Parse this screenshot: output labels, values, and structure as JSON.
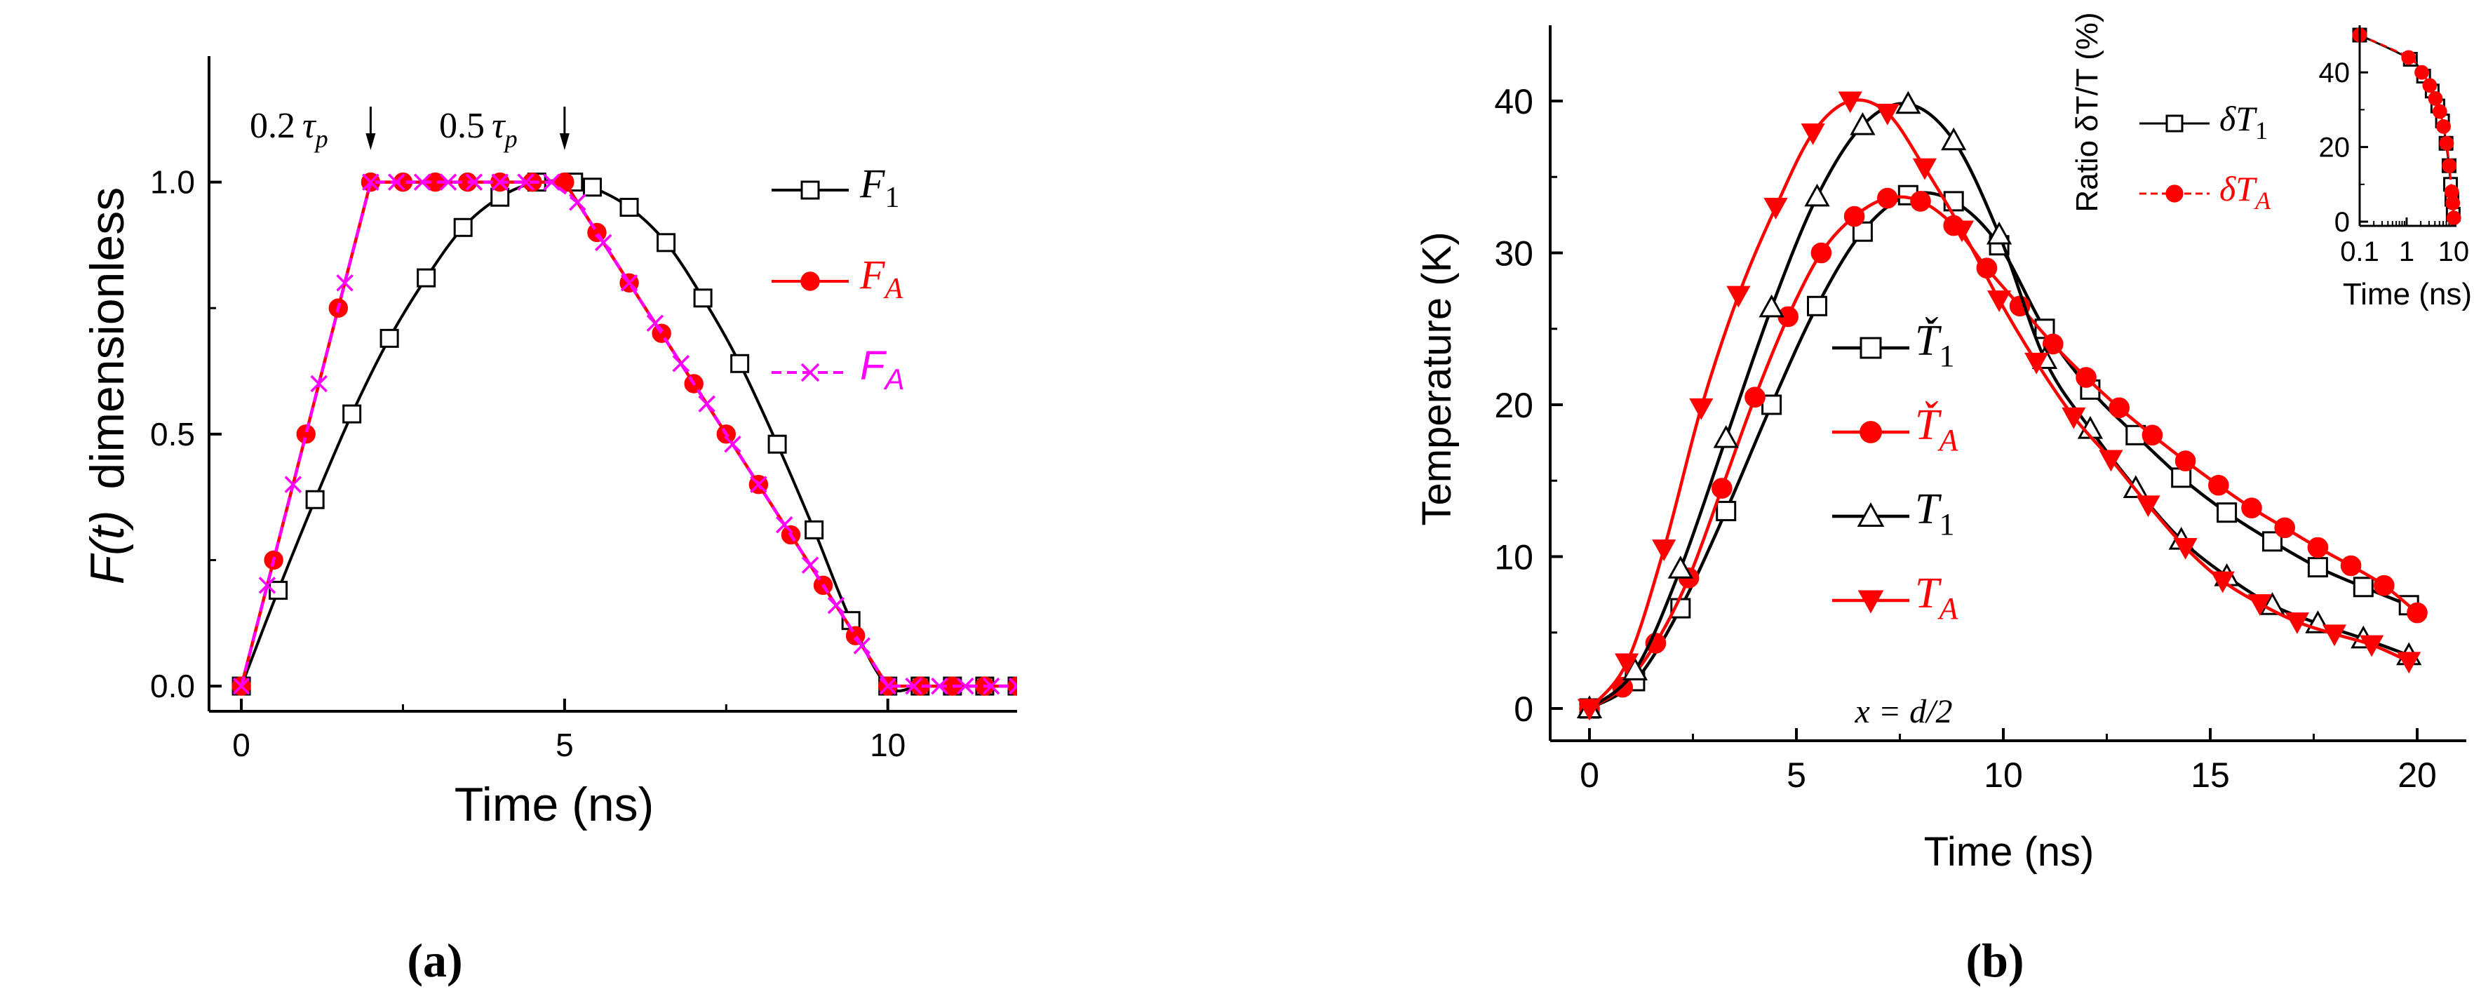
{
  "colors": {
    "black": "#000000",
    "red": "#ff0000",
    "magenta": "#ff00ff",
    "white": "#ffffff"
  },
  "chart_data": [
    {
      "id": "a",
      "type": "line",
      "panel_label": "(a)",
      "xlabel": "Time (ns)",
      "ylabel_var": "F(t)",
      "ylabel_text": "dimensionless",
      "xlim": [
        -0.5,
        12
      ],
      "ylim": [
        -0.05,
        1.25
      ],
      "x_ticks": [
        0,
        5,
        10
      ],
      "x_tick_labels": [
        "0",
        "5",
        "10"
      ],
      "x_minor_ticks": [
        2.5,
        7.5
      ],
      "y_ticks": [
        0.0,
        0.5,
        1.0
      ],
      "y_tick_labels": [
        "0.0",
        "0.5",
        "1.0"
      ],
      "y_minor_ticks": [
        0.25,
        0.75
      ],
      "annotations": [
        {
          "coef": "0.2",
          "sym": "τ",
          "sub": "p",
          "arrow_x": 2
        },
        {
          "coef": "0.5",
          "sym": "τ",
          "sub": "p",
          "arrow_x": 5
        }
      ],
      "series": [
        {
          "name": "F1",
          "label_main": "F",
          "label_sub": "1",
          "color": "#000000",
          "marker": "square-open",
          "dash": false,
          "x": [
            0,
            0.57,
            1.14,
            1.71,
            2.29,
            2.86,
            3.43,
            4.0,
            4.57,
            5.14,
            5.43,
            6.0,
            6.57,
            7.14,
            7.71,
            8.29,
            8.86,
            9.43,
            10.0,
            10.5,
            11.0,
            11.5,
            12.0
          ],
          "y": [
            0,
            0.19,
            0.37,
            0.54,
            0.69,
            0.81,
            0.91,
            0.97,
            1.0,
            1.0,
            0.99,
            0.95,
            0.88,
            0.77,
            0.64,
            0.48,
            0.31,
            0.13,
            0,
            0,
            0,
            0,
            0
          ]
        },
        {
          "name": "FA",
          "label_main": "F",
          "label_sub": "A",
          "color": "#ff0000",
          "marker": "circle-filled",
          "dash": false,
          "x": [
            0,
            0.5,
            1.0,
            1.5,
            2.0,
            2.5,
            3.0,
            3.5,
            4.0,
            4.5,
            5.0,
            5.5,
            6.0,
            6.5,
            7.0,
            7.5,
            8.0,
            8.5,
            9.0,
            9.5,
            10.0,
            10.5,
            11.0,
            11.5,
            12.0
          ],
          "y": [
            0,
            0.25,
            0.5,
            0.75,
            1.0,
            1.0,
            1.0,
            1.0,
            1.0,
            1.0,
            1.0,
            0.9,
            0.8,
            0.7,
            0.6,
            0.5,
            0.4,
            0.3,
            0.2,
            0.1,
            0,
            0,
            0,
            0,
            0
          ]
        },
        {
          "name": "FA-dashed",
          "label_main": "F",
          "label_sub": "A",
          "color": "#ff00ff",
          "marker": "cross",
          "dash": true,
          "x": [
            0,
            0.4,
            0.8,
            1.2,
            1.6,
            2.0,
            2.4,
            2.8,
            3.2,
            3.6,
            4.0,
            4.4,
            4.8,
            5.2,
            5.6,
            6.0,
            6.4,
            6.8,
            7.2,
            7.6,
            8.0,
            8.4,
            8.8,
            9.2,
            9.6,
            10.0,
            10.4,
            10.8,
            11.2,
            11.6,
            12.0
          ],
          "y": [
            0,
            0.2,
            0.4,
            0.6,
            0.8,
            1.0,
            1.0,
            1.0,
            1.0,
            1.0,
            1.0,
            1.0,
            1.0,
            0.96,
            0.88,
            0.8,
            0.72,
            0.64,
            0.56,
            0.48,
            0.4,
            0.32,
            0.24,
            0.16,
            0.08,
            0,
            0,
            0,
            0,
            0,
            0
          ]
        }
      ]
    },
    {
      "id": "b",
      "type": "line",
      "panel_label": "(b)",
      "xlabel": "Time (ns)",
      "ylabel": "Temperature (K)",
      "xlim": [
        -1,
        21
      ],
      "ylim": [
        -2,
        45
      ],
      "x_ticks": [
        0,
        5,
        10,
        15,
        20
      ],
      "x_tick_labels": [
        "0",
        "5",
        "10",
        "15",
        "20"
      ],
      "x_minor_ticks": [
        2.5,
        7.5,
        12.5,
        17.5
      ],
      "y_ticks": [
        0,
        10,
        20,
        30,
        40
      ],
      "y_tick_labels": [
        "0",
        "10",
        "20",
        "30",
        "40"
      ],
      "y_minor_ticks": [
        5,
        15,
        25,
        35
      ],
      "annotation": "x = d/2",
      "series": [
        {
          "name": "T1-check",
          "label_main": "Ť",
          "label_sub": "1",
          "color": "#000000",
          "marker": "square-open",
          "x": [
            0,
            1.1,
            2.2,
            3.3,
            4.4,
            5.5,
            6.6,
            7.7,
            8.8,
            9.9,
            11.0,
            12.1,
            13.2,
            14.3,
            15.4,
            16.5,
            17.6,
            18.7,
            19.8
          ],
          "y": [
            0,
            1.8,
            6.6,
            13,
            20,
            26.5,
            31.4,
            33.8,
            33.4,
            30.5,
            25.0,
            21.0,
            18.0,
            15.2,
            12.9,
            11.0,
            9.3,
            8.0,
            6.8
          ]
        },
        {
          "name": "TA-check",
          "label_main": "Ť",
          "label_sub": "A",
          "color": "#ff0000",
          "marker": "circle-filled",
          "x": [
            0,
            0.8,
            1.6,
            2.4,
            3.2,
            4.0,
            4.8,
            5.6,
            6.4,
            7.2,
            8.0,
            8.8,
            9.6,
            10.4,
            11.2,
            12.0,
            12.8,
            13.6,
            14.4,
            15.2,
            16.0,
            16.8,
            17.6,
            18.4,
            19.2,
            20.0
          ],
          "y": [
            0,
            1.4,
            4.3,
            8.6,
            14.5,
            20.5,
            25.8,
            30.0,
            32.4,
            33.6,
            33.4,
            31.8,
            29.0,
            26.5,
            24.0,
            21.8,
            19.8,
            18.0,
            16.3,
            14.7,
            13.2,
            11.9,
            10.6,
            9.4,
            8.1,
            6.3
          ]
        },
        {
          "name": "T1",
          "label_main": "T",
          "label_sub": "1",
          "color": "#000000",
          "marker": "triangle-up-open",
          "x": [
            0,
            1.1,
            2.2,
            3.3,
            4.4,
            5.5,
            6.6,
            7.7,
            8.8,
            9.9,
            11.0,
            12.1,
            13.2,
            14.3,
            15.4,
            16.5,
            17.6,
            18.7,
            19.8
          ],
          "y": [
            0,
            2.5,
            9.2,
            17.8,
            26.4,
            33.7,
            38.4,
            39.8,
            37.4,
            31.2,
            23.0,
            18.4,
            14.5,
            11.1,
            8.7,
            6.8,
            5.6,
            4.6,
            3.5
          ]
        },
        {
          "name": "TA",
          "label_main": "T",
          "label_sub": "A",
          "color": "#ff0000",
          "marker": "triangle-down-filled",
          "x": [
            0,
            0.9,
            1.8,
            2.7,
            3.6,
            4.5,
            5.4,
            6.3,
            7.2,
            8.1,
            9.0,
            9.9,
            10.8,
            11.7,
            12.6,
            13.5,
            14.4,
            15.3,
            16.2,
            17.1,
            18.0,
            18.9,
            19.8
          ],
          "y": [
            0,
            3.0,
            10.5,
            19.8,
            27.2,
            33.0,
            37.9,
            40.0,
            39.2,
            35.6,
            31.5,
            26.9,
            22.8,
            19.2,
            16.4,
            13.4,
            10.6,
            8.4,
            6.9,
            5.7,
            4.9,
            4.2,
            3.1
          ]
        }
      ],
      "inset": {
        "type": "line",
        "xscale": "log",
        "xlabel": "Time (ns)",
        "ylabel": "Ratio δT/T (%)",
        "xlim": [
          0.1,
          11.5
        ],
        "ylim": [
          -2,
          52
        ],
        "x_ticks": [
          0.1,
          1,
          10
        ],
        "x_tick_labels": [
          "0.1",
          "1",
          "10"
        ],
        "y_ticks": [
          0,
          20,
          40
        ],
        "y_tick_labels": [
          "0",
          "20",
          "40"
        ],
        "y_minor_ticks": [
          10,
          30,
          50
        ],
        "series": [
          {
            "name": "dT1",
            "label_main": "δT",
            "label_sub": "1",
            "color": "#000000",
            "marker": "square-open",
            "dash": false,
            "x": [
              0.1,
              1.2,
              2.3,
              3.5,
              4.6,
              5.8,
              6.9,
              8.0,
              8.6,
              9.2,
              9.8
            ],
            "y": [
              50,
              43.5,
              39,
              35,
              31,
              27,
              21,
              15,
              10,
              6,
              2
            ]
          },
          {
            "name": "dTA",
            "label_main": "δT",
            "label_sub": "A",
            "color": "#ff0000",
            "marker": "circle-filled",
            "dash": true,
            "x": [
              0.1,
              1.1,
              2.1,
              3.1,
              4.1,
              5.1,
              6.1,
              7.1,
              8.1,
              9.1,
              9.6,
              10.1
            ],
            "y": [
              50,
              44,
              40,
              36.5,
              33,
              29.5,
              25.5,
              21,
              15,
              8,
              5,
              1
            ]
          }
        ]
      }
    }
  ]
}
